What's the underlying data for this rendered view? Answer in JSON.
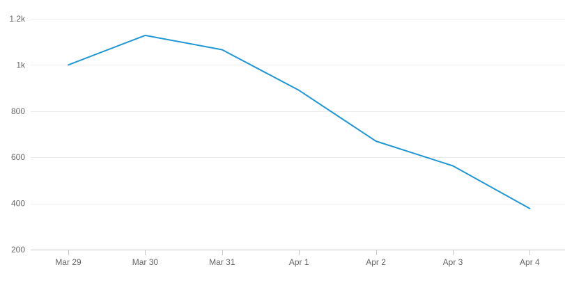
{
  "chart_data": {
    "type": "line",
    "title": "",
    "xlabel": "",
    "ylabel": "",
    "categories": [
      "Mar 29",
      "Mar 30",
      "Mar 31",
      "Apr 1",
      "Apr 2",
      "Apr 3",
      "Apr 4"
    ],
    "series": [
      {
        "values": [
          1000,
          1128,
          1066,
          890,
          670,
          563,
          378
        ],
        "color": "#1f97d4"
      }
    ],
    "ylim": [
      200,
      1200
    ],
    "y_ticks": [
      {
        "value": 200,
        "label": "200"
      },
      {
        "value": 400,
        "label": "400"
      },
      {
        "value": 600,
        "label": "600"
      },
      {
        "value": 800,
        "label": "800"
      },
      {
        "value": 1000,
        "label": "1k"
      },
      {
        "value": 1200,
        "label": "1.2k"
      }
    ],
    "grid": true,
    "legend": "none"
  }
}
